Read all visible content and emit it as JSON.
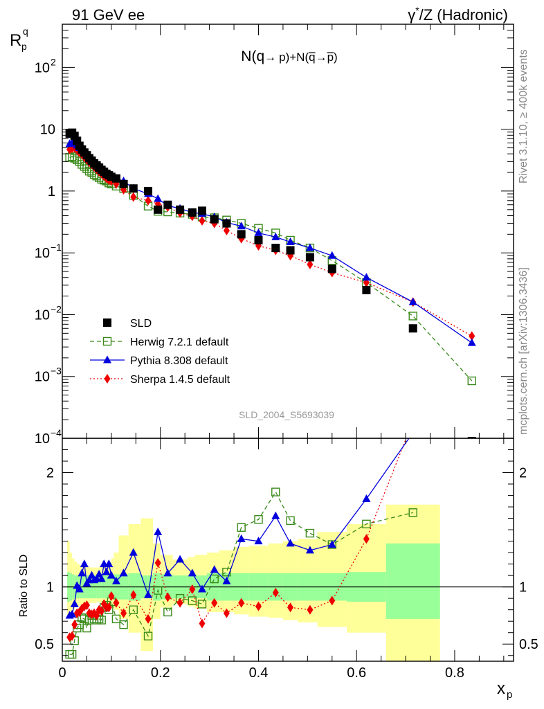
{
  "header": {
    "left": "91 GeV ee",
    "right_main": "γ",
    "right_sup": "*",
    "right_rest": "/Z (Hadronic)"
  },
  "side": {
    "rivet": "Rivet 3.1.10, ≥ 400k events",
    "mcplots": "mcplots.cern.ch [arXiv:1306.3436]"
  },
  "chart_data": {
    "type": "scatter",
    "title": "N(q → p)+N(q̄ → p̄)",
    "title_parts": [
      "N(q",
      "→",
      "p)+N(",
      "q",
      "→",
      "p",
      ")"
    ],
    "ylabel_main": "R",
    "ylabel_sub": "p",
    "ylabel_sup": "q",
    "ratio_ylabel": "Ratio to SLD",
    "xlabel_main": "x",
    "xlabel_sub": "p",
    "watermark": "SLD_2004_S5693039",
    "xlim": [
      0,
      0.92
    ],
    "ylim": [
      0.0001,
      500
    ],
    "ratio_ylim": [
      0.35,
      2.3
    ],
    "yscale": "log",
    "x_ticks": [
      {
        "v": 0,
        "label": "0"
      },
      {
        "v": 0.2,
        "label": "0.2"
      },
      {
        "v": 0.4,
        "label": "0.4"
      },
      {
        "v": 0.6,
        "label": "0.6"
      },
      {
        "v": 0.8,
        "label": "0.8"
      }
    ],
    "y_ticks": [
      {
        "v": 100,
        "base": "10",
        "exp": "2"
      },
      {
        "v": 10,
        "base": "10",
        "exp": ""
      },
      {
        "v": 1,
        "base": "1",
        "exp": ""
      },
      {
        "v": 0.1,
        "base": "10",
        "exp": "−1"
      },
      {
        "v": 0.01,
        "base": "10",
        "exp": "−2"
      },
      {
        "v": 0.001,
        "base": "10",
        "exp": "−3"
      },
      {
        "v": 0.0001,
        "base": "10",
        "exp": "−4"
      }
    ],
    "ratio_ticks": [
      {
        "v": 2,
        "label": "2"
      },
      {
        "v": 1,
        "label": "1"
      },
      {
        "v": 0.5,
        "label": "0.5"
      }
    ],
    "legend_position": "lower-left",
    "series": [
      {
        "name": "SLD",
        "label": "SLD",
        "color": "#000000",
        "marker": "square-filled",
        "line": "none",
        "x": [
          0.015,
          0.02,
          0.025,
          0.03,
          0.035,
          0.04,
          0.045,
          0.05,
          0.055,
          0.06,
          0.065,
          0.07,
          0.075,
          0.08,
          0.085,
          0.09,
          0.095,
          0.1,
          0.11,
          0.125,
          0.145,
          0.175,
          0.195,
          0.215,
          0.24,
          0.265,
          0.285,
          0.31,
          0.335,
          0.365,
          0.4,
          0.435,
          0.465,
          0.505,
          0.55,
          0.62,
          0.715,
          0.835
        ],
        "y": [
          8.5,
          8.8,
          7.8,
          6.5,
          5.4,
          4.7,
          4.2,
          3.8,
          3.4,
          3.1,
          2.8,
          2.6,
          2.4,
          2.2,
          2.05,
          1.9,
          1.8,
          1.7,
          1.6,
          1.3,
          1.1,
          1.0,
          0.5,
          0.6,
          0.5,
          0.45,
          0.48,
          0.35,
          0.3,
          0.2,
          0.16,
          0.12,
          0.11,
          0.085,
          0.055,
          0.025,
          0.006,
          9e-05
        ]
      },
      {
        "name": "Herwig",
        "label": "Herwig 7.2.1 default",
        "color": "#3a8a1a",
        "marker": "square-open",
        "line": "dashed",
        "x": [
          0.015,
          0.02,
          0.025,
          0.03,
          0.035,
          0.04,
          0.045,
          0.05,
          0.055,
          0.06,
          0.065,
          0.07,
          0.075,
          0.08,
          0.085,
          0.09,
          0.095,
          0.1,
          0.11,
          0.125,
          0.145,
          0.175,
          0.195,
          0.215,
          0.24,
          0.265,
          0.285,
          0.31,
          0.335,
          0.365,
          0.4,
          0.435,
          0.465,
          0.505,
          0.55,
          0.62,
          0.715,
          0.835
        ],
        "y": [
          3.5,
          3.6,
          3.4,
          3.2,
          3.0,
          2.7,
          2.5,
          2.3,
          2.1,
          2.0,
          1.85,
          1.75,
          1.65,
          1.55,
          1.5,
          1.45,
          1.35,
          1.3,
          1.2,
          1.1,
          0.85,
          0.57,
          0.47,
          0.46,
          0.44,
          0.42,
          0.38,
          0.37,
          0.34,
          0.3,
          0.25,
          0.21,
          0.16,
          0.12,
          0.075,
          0.033,
          0.0095,
          0.00085
        ]
      },
      {
        "name": "Pythia",
        "label": "Pythia 8.308 default",
        "color": "#0000dd",
        "marker": "triangle-filled",
        "line": "solid",
        "x": [
          0.015,
          0.02,
          0.025,
          0.03,
          0.035,
          0.04,
          0.045,
          0.05,
          0.055,
          0.06,
          0.065,
          0.07,
          0.075,
          0.08,
          0.085,
          0.09,
          0.095,
          0.1,
          0.11,
          0.125,
          0.145,
          0.175,
          0.195,
          0.215,
          0.24,
          0.265,
          0.285,
          0.31,
          0.335,
          0.365,
          0.4,
          0.435,
          0.465,
          0.505,
          0.55,
          0.62,
          0.715,
          0.835
        ],
        "y": [
          5.8,
          6.0,
          6.1,
          5.5,
          5.0,
          4.6,
          4.2,
          3.9,
          3.6,
          3.3,
          3.0,
          2.8,
          2.6,
          2.4,
          2.2,
          2.05,
          1.9,
          1.8,
          1.6,
          1.45,
          1.1,
          0.9,
          0.75,
          0.58,
          0.52,
          0.45,
          0.43,
          0.38,
          0.31,
          0.27,
          0.21,
          0.18,
          0.15,
          0.12,
          0.09,
          0.04,
          0.016,
          0.0035
        ]
      },
      {
        "name": "Sherpa",
        "label": "Sherpa 1.4.5 default",
        "color": "#ee0000",
        "marker": "diamond-filled",
        "line": "dotted",
        "x": [
          0.015,
          0.02,
          0.025,
          0.03,
          0.035,
          0.04,
          0.045,
          0.05,
          0.055,
          0.06,
          0.065,
          0.07,
          0.075,
          0.08,
          0.085,
          0.09,
          0.095,
          0.1,
          0.11,
          0.125,
          0.145,
          0.175,
          0.195,
          0.215,
          0.24,
          0.265,
          0.285,
          0.31,
          0.335,
          0.365,
          0.4,
          0.435,
          0.465,
          0.505,
          0.55,
          0.62,
          0.715,
          0.835
        ],
        "y": [
          4.7,
          4.9,
          5.0,
          4.6,
          4.2,
          3.9,
          3.5,
          3.2,
          2.9,
          2.7,
          2.45,
          2.25,
          2.05,
          1.9,
          1.75,
          1.6,
          1.5,
          1.45,
          1.3,
          1.05,
          0.8,
          0.7,
          0.62,
          0.55,
          0.44,
          0.39,
          0.33,
          0.3,
          0.23,
          0.17,
          0.13,
          0.11,
          0.09,
          0.065,
          0.048,
          0.033,
          0.016,
          0.0045
        ]
      }
    ],
    "ratio": {
      "x": [
        0.015,
        0.02,
        0.025,
        0.03,
        0.035,
        0.04,
        0.045,
        0.05,
        0.055,
        0.06,
        0.065,
        0.07,
        0.075,
        0.08,
        0.085,
        0.09,
        0.095,
        0.1,
        0.11,
        0.125,
        0.145,
        0.175,
        0.195,
        0.215,
        0.24,
        0.265,
        0.285,
        0.31,
        0.335,
        0.365,
        0.4,
        0.435,
        0.465,
        0.505,
        0.55,
        0.62,
        0.715
      ],
      "Herwig": [
        0.41,
        0.41,
        0.53,
        0.64,
        0.67,
        0.73,
        0.72,
        0.64,
        0.71,
        0.75,
        0.72,
        0.71,
        0.72,
        0.71,
        0.82,
        0.84,
        0.8,
        0.87,
        0.72,
        0.67,
        0.8,
        0.57,
        0.97,
        0.78,
        0.9,
        0.88,
        0.85,
        1.07,
        1.13,
        1.52,
        1.59,
        1.83,
        1.58,
        1.47,
        1.37,
        1.55,
        1.65
      ],
      "Pythia": [
        0.75,
        0.76,
        0.85,
        1.01,
        0.98,
        1.12,
        1.2,
        1.03,
        1.06,
        1.1,
        1.06,
        1.07,
        1.11,
        1.07,
        1.2,
        1.13,
        1.2,
        1.1,
        1.05,
        1.12,
        1.3,
        0.93,
        1.48,
        1.12,
        1.24,
        1.12,
        0.98,
        1.15,
        1.05,
        1.42,
        1.4,
        1.62,
        1.38,
        1.32,
        1.37,
        1.77,
        2.35
      ],
      "Sherpa": [
        0.56,
        0.57,
        0.67,
        0.77,
        0.78,
        0.81,
        0.83,
        0.84,
        0.77,
        0.76,
        0.77,
        0.75,
        0.8,
        0.79,
        0.85,
        0.82,
        0.82,
        0.92,
        0.86,
        0.77,
        0.93,
        0.72,
        1.21,
        0.91,
        0.86,
        0.98,
        0.68,
        0.86,
        0.77,
        0.86,
        0.83,
        0.95,
        0.82,
        0.8,
        0.88,
        1.42,
        2.45
      ]
    },
    "ratio_bands": {
      "edges": [
        0.01,
        0.015,
        0.02,
        0.025,
        0.03,
        0.035,
        0.04,
        0.045,
        0.05,
        0.055,
        0.06,
        0.065,
        0.07,
        0.075,
        0.08,
        0.085,
        0.09,
        0.095,
        0.1,
        0.105,
        0.115,
        0.135,
        0.16,
        0.185,
        0.2,
        0.225,
        0.255,
        0.27,
        0.295,
        0.32,
        0.35,
        0.38,
        0.42,
        0.45,
        0.48,
        0.52,
        0.58,
        0.66,
        0.77
      ],
      "stat_lo": [
        0.87,
        0.88,
        0.89,
        0.9,
        0.9,
        0.9,
        0.9,
        0.9,
        0.9,
        0.9,
        0.9,
        0.9,
        0.9,
        0.9,
        0.9,
        0.9,
        0.9,
        0.9,
        0.9,
        0.89,
        0.89,
        0.88,
        0.9,
        0.88,
        0.89,
        0.9,
        0.9,
        0.9,
        0.88,
        0.88,
        0.88,
        0.88,
        0.88,
        0.88,
        0.88,
        0.88,
        0.87,
        0.72
      ],
      "stat_hi": [
        1.13,
        1.12,
        1.11,
        1.1,
        1.1,
        1.1,
        1.1,
        1.1,
        1.1,
        1.1,
        1.1,
        1.1,
        1.1,
        1.1,
        1.1,
        1.1,
        1.1,
        1.1,
        1.1,
        1.11,
        1.11,
        1.12,
        1.1,
        1.12,
        1.11,
        1.1,
        1.1,
        1.1,
        1.12,
        1.12,
        1.12,
        1.12,
        1.12,
        1.12,
        1.12,
        1.12,
        1.13,
        1.38
      ],
      "tot_lo": [
        0.73,
        0.78,
        0.8,
        0.82,
        0.83,
        0.84,
        0.84,
        0.85,
        0.85,
        0.86,
        0.86,
        0.86,
        0.87,
        0.86,
        0.86,
        0.86,
        0.85,
        0.84,
        0.83,
        0.8,
        0.72,
        0.6,
        0.44,
        0.72,
        0.82,
        0.85,
        0.83,
        0.81,
        0.78,
        0.78,
        0.76,
        0.74,
        0.73,
        0.71,
        0.69,
        0.65,
        0.6,
        0.35
      ],
      "tot_hi": [
        1.4,
        1.3,
        1.25,
        1.22,
        1.2,
        1.19,
        1.18,
        1.18,
        1.18,
        1.17,
        1.17,
        1.17,
        1.17,
        1.18,
        1.18,
        1.19,
        1.2,
        1.22,
        1.25,
        1.3,
        1.45,
        1.55,
        1.6,
        1.38,
        1.28,
        1.24,
        1.26,
        1.28,
        1.3,
        1.32,
        1.35,
        1.36,
        1.38,
        1.4,
        1.42,
        1.48,
        1.55,
        1.72
      ]
    }
  }
}
